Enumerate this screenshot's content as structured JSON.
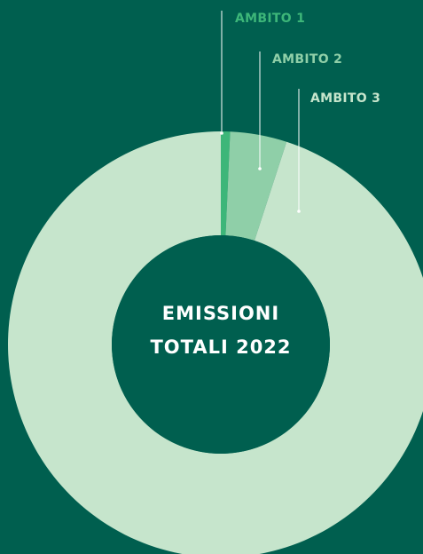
{
  "chart_data": {
    "type": "donut",
    "title": "EMISSIONI TOTALI 2022",
    "categories": [
      "AMBITO 1",
      "AMBITO 2",
      "AMBITO 3"
    ],
    "values": [
      0.7,
      4.3,
      95
    ],
    "colors": [
      "#3db679",
      "#8fcfa8",
      "#c6e5cc"
    ],
    "background": "#005f4f"
  }
}
